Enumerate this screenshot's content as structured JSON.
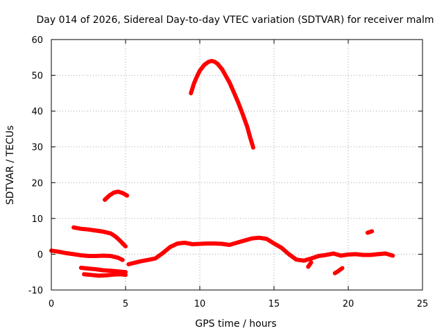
{
  "chart_data": {
    "type": "scatter",
    "title": "Day 014 of 2026, Sidereal Day-to-day VTEC variation (SDTVAR) for receiver malm",
    "xlabel": "GPS time / hours",
    "ylabel": "SDTVAR / TECUs",
    "xlim": [
      0,
      25
    ],
    "ylim": [
      -10,
      60
    ],
    "xticks": [
      "0",
      "5",
      "10",
      "15",
      "20",
      "25"
    ],
    "yticks": [
      "-10",
      "0",
      "10",
      "20",
      "30",
      "40",
      "50",
      "60"
    ],
    "grid": true,
    "color": "#ff0000",
    "series": [
      {
        "name": "arc-baseline-early",
        "points": [
          [
            0,
            1
          ],
          [
            0.5,
            0.7
          ],
          [
            1,
            0.3
          ],
          [
            1.5,
            0
          ],
          [
            2,
            -0.3
          ],
          [
            2.5,
            -0.5
          ],
          [
            3,
            -0.5
          ],
          [
            3.5,
            -0.4
          ],
          [
            4,
            -0.5
          ],
          [
            4.5,
            -1
          ],
          [
            4.8,
            -1.6
          ]
        ]
      },
      {
        "name": "arc-lower-a",
        "points": [
          [
            2,
            -3.8
          ],
          [
            2.5,
            -4
          ],
          [
            3,
            -4.2
          ],
          [
            3.5,
            -4.5
          ],
          [
            4,
            -4.6
          ],
          [
            4.5,
            -4.8
          ],
          [
            5,
            -5
          ]
        ]
      },
      {
        "name": "arc-lower-b",
        "points": [
          [
            2.2,
            -5.6
          ],
          [
            2.7,
            -5.8
          ],
          [
            3.2,
            -6
          ],
          [
            3.7,
            -5.9
          ],
          [
            4.2,
            -5.7
          ],
          [
            4.7,
            -5.6
          ],
          [
            5,
            -5.8
          ]
        ]
      },
      {
        "name": "arc-decline",
        "points": [
          [
            1.5,
            7.5
          ],
          [
            2,
            7.1
          ],
          [
            2.5,
            6.9
          ],
          [
            3,
            6.6
          ],
          [
            3.5,
            6.3
          ],
          [
            4,
            5.8
          ],
          [
            4.3,
            5
          ],
          [
            4.6,
            3.9
          ],
          [
            5,
            2.2
          ]
        ]
      },
      {
        "name": "arc-hump-small",
        "points": [
          [
            3.6,
            15.2
          ],
          [
            3.9,
            16.4
          ],
          [
            4.2,
            17.2
          ],
          [
            4.5,
            17.5
          ],
          [
            4.8,
            17.1
          ],
          [
            5.1,
            16.4
          ]
        ]
      },
      {
        "name": "arc-big-peak",
        "points": [
          [
            9.4,
            45
          ],
          [
            9.6,
            47.6
          ],
          [
            9.8,
            49.6
          ],
          [
            10,
            51.3
          ],
          [
            10.3,
            52.9
          ],
          [
            10.6,
            53.8
          ],
          [
            10.8,
            54
          ],
          [
            11,
            53.8
          ],
          [
            11.2,
            53.2
          ],
          [
            11.5,
            51.7
          ],
          [
            11.8,
            49.5
          ],
          [
            12,
            48
          ],
          [
            12.3,
            45.2
          ],
          [
            12.6,
            42.3
          ],
          [
            12.9,
            39
          ],
          [
            13.2,
            35.5
          ],
          [
            13.4,
            32.5
          ],
          [
            13.6,
            29.8
          ]
        ]
      },
      {
        "name": "arc-baseline-mid",
        "points": [
          [
            5.2,
            -2.8
          ],
          [
            5.6,
            -2.4
          ],
          [
            6,
            -2
          ],
          [
            6.5,
            -1.6
          ],
          [
            7,
            -1.2
          ],
          [
            7.5,
            0.3
          ],
          [
            8,
            2
          ],
          [
            8.5,
            3
          ],
          [
            9,
            3.2
          ],
          [
            9.5,
            2.8
          ],
          [
            10,
            2.9
          ],
          [
            10.5,
            3
          ],
          [
            11,
            3
          ],
          [
            11.5,
            2.9
          ],
          [
            12,
            2.6
          ],
          [
            12.5,
            3.2
          ],
          [
            13,
            3.8
          ],
          [
            13.5,
            4.4
          ],
          [
            14,
            4.6
          ],
          [
            14.5,
            4.3
          ],
          [
            15,
            3
          ],
          [
            15.5,
            1.8
          ],
          [
            16,
            0
          ],
          [
            16.5,
            -1.5
          ],
          [
            17,
            -1.8
          ],
          [
            17.5,
            -1.2
          ],
          [
            18,
            -0.5
          ],
          [
            18.5,
            -0.2
          ],
          [
            19,
            0.2
          ],
          [
            19.5,
            -0.4
          ],
          [
            20,
            -0.1
          ],
          [
            20.5,
            0
          ],
          [
            21,
            -0.2
          ],
          [
            21.5,
            -0.2
          ],
          [
            22,
            0
          ],
          [
            22.5,
            0.2
          ],
          [
            23,
            -0.4
          ]
        ]
      },
      {
        "name": "arc-short-1",
        "points": [
          [
            19.1,
            -5.3
          ],
          [
            19.3,
            -4.8
          ],
          [
            19.6,
            -3.9
          ]
        ]
      },
      {
        "name": "arc-short-2",
        "points": [
          [
            21.3,
            6
          ],
          [
            21.6,
            6.4
          ]
        ]
      },
      {
        "name": "arc-short-3",
        "points": [
          [
            17.3,
            -3.5
          ],
          [
            17.5,
            -2.3
          ]
        ]
      }
    ]
  }
}
